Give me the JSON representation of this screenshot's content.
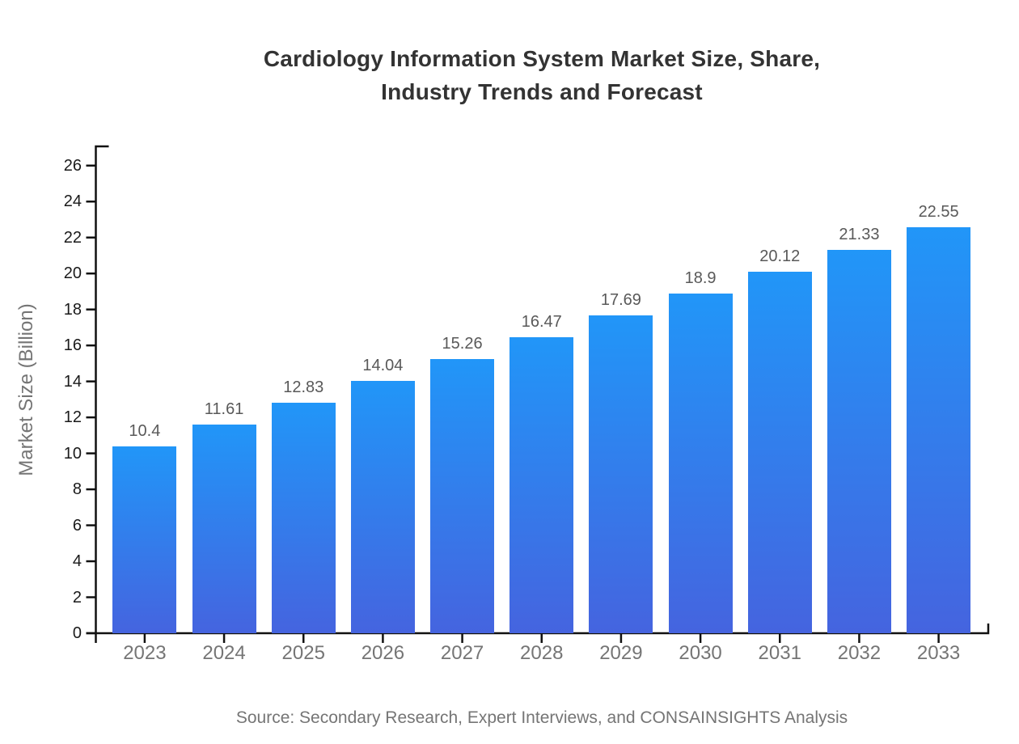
{
  "title": {
    "line1": "Cardiology Information System Market Size, Share,",
    "line2": "Industry Trends and Forecast"
  },
  "chart_data": {
    "type": "bar",
    "title": "Cardiology Information System Market Size, Share, Industry Trends and Forecast",
    "categories": [
      "2023",
      "2024",
      "2025",
      "2026",
      "2027",
      "2028",
      "2029",
      "2030",
      "2031",
      "2032",
      "2033"
    ],
    "values": [
      10.4,
      11.61,
      12.83,
      14.04,
      15.26,
      16.47,
      17.69,
      18.9,
      20.12,
      21.33,
      22.55
    ],
    "value_labels": [
      "10.4",
      "11.61",
      "12.83",
      "14.04",
      "15.26",
      "16.47",
      "17.69",
      "18.9",
      "20.12",
      "21.33",
      "22.55"
    ],
    "xlabel": "",
    "ylabel": "Market Size (Billion)",
    "ylim": [
      0,
      26
    ],
    "ytick_step": 2,
    "grid": false,
    "legend": null,
    "bar_gradient": {
      "top": "#2196f8",
      "bottom": "#4564df"
    }
  },
  "source_note": "Source: Secondary Research, Expert Interviews, and CONSAINSIGHTS Analysis",
  "colors": {
    "title_text": "#333333",
    "axis_line": "#111111",
    "y_tick_label": "#1a1a1a",
    "x_tick_label": "#757575",
    "value_label": "#595959",
    "muted_text": "#757575"
  }
}
